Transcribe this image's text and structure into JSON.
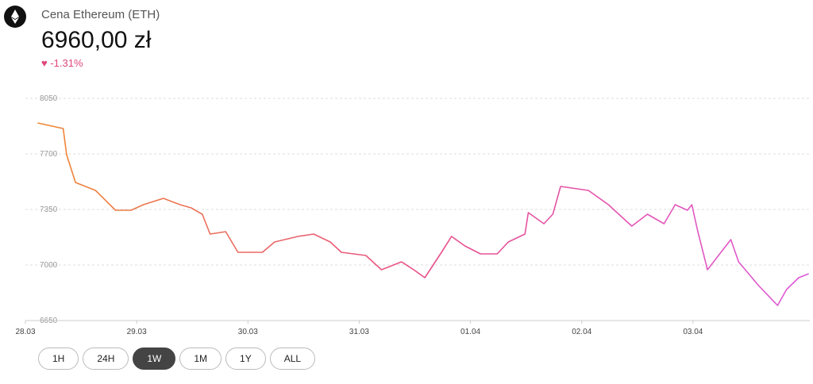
{
  "header": {
    "title": "Cena Ethereum (ETH)",
    "price": "6960,00 zł",
    "change": "-1.31%"
  },
  "ranges": {
    "options": [
      "1H",
      "24H",
      "1W",
      "1M",
      "1Y",
      "ALL"
    ],
    "selected": 2
  },
  "chart_data": {
    "type": "line",
    "colors": [
      "#ee8833",
      "#e8508a",
      "#de5ad8"
    ],
    "x": [
      0.11,
      0.34,
      0.37,
      0.45,
      0.63,
      0.81,
      0.95,
      1.06,
      1.24,
      1.39,
      1.49,
      1.59,
      1.66,
      1.8,
      1.91,
      2.13,
      2.24,
      2.45,
      2.59,
      2.74,
      2.84,
      3.06,
      3.2,
      3.38,
      3.49,
      3.59,
      3.74,
      3.83,
      3.95,
      4.09,
      4.24,
      4.34,
      4.49,
      4.52,
      4.66,
      4.74,
      4.81,
      5.06,
      5.24,
      5.45,
      5.59,
      5.74,
      5.84,
      5.95,
      5.99,
      6.04,
      6.13,
      6.24,
      6.34,
      6.41,
      6.59,
      6.76,
      6.84,
      6.95,
      7.04
    ],
    "values": [
      7895,
      7860,
      7695,
      7520,
      7470,
      7345,
      7345,
      7380,
      7420,
      7380,
      7360,
      7320,
      7195,
      7210,
      7080,
      7080,
      7145,
      7180,
      7195,
      7145,
      7080,
      7060,
      6970,
      7020,
      6970,
      6920,
      7080,
      7180,
      7120,
      7070,
      7070,
      7145,
      7195,
      7330,
      7260,
      7320,
      7495,
      7470,
      7380,
      7245,
      7320,
      7260,
      7380,
      7345,
      7380,
      7220,
      6970,
      7070,
      7160,
      7020,
      6870,
      6745,
      6845,
      6920,
      6945
    ],
    "xlim": [
      0,
      7.05
    ],
    "xticks": [
      {
        "value": 0,
        "label": "28.03"
      },
      {
        "value": 1,
        "label": "29.03"
      },
      {
        "value": 2,
        "label": "30.03"
      },
      {
        "value": 3,
        "label": "31.03"
      },
      {
        "value": 4,
        "label": "01.04"
      },
      {
        "value": 5,
        "label": "02.04"
      },
      {
        "value": 6,
        "label": "03.04"
      }
    ],
    "ylim": [
      6650,
      8050
    ],
    "yticks": [
      6650,
      7000,
      7350,
      7700,
      8050
    ],
    "grid": true
  }
}
